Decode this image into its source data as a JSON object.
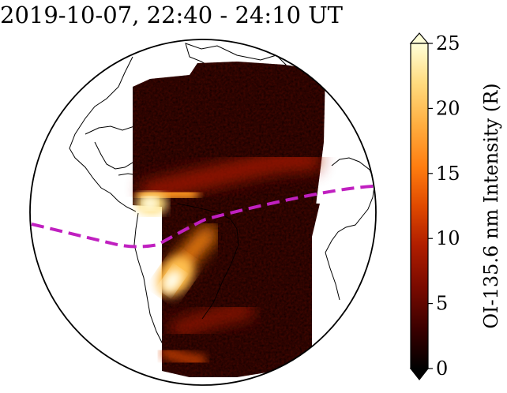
{
  "title": "2019-10-07, 22:40 - 24:10 UT",
  "colorbar": {
    "label": "OI-135.6 nm Intensity (R)",
    "ticks": [
      "0",
      "5",
      "10",
      "15",
      "20",
      "25"
    ],
    "range": [
      0,
      25
    ],
    "extend": "both",
    "colormap": "afmhot",
    "colors": [
      "#000000",
      "#3a0000",
      "#7a0a00",
      "#b01e00",
      "#e04a00",
      "#ff7d10",
      "#ffae40",
      "#ffdc80",
      "#ffffd8"
    ]
  },
  "map": {
    "projection": "orthographic",
    "magnetic_equator_color": "#c020c0",
    "magnetic_equator_style": "dashed"
  }
}
